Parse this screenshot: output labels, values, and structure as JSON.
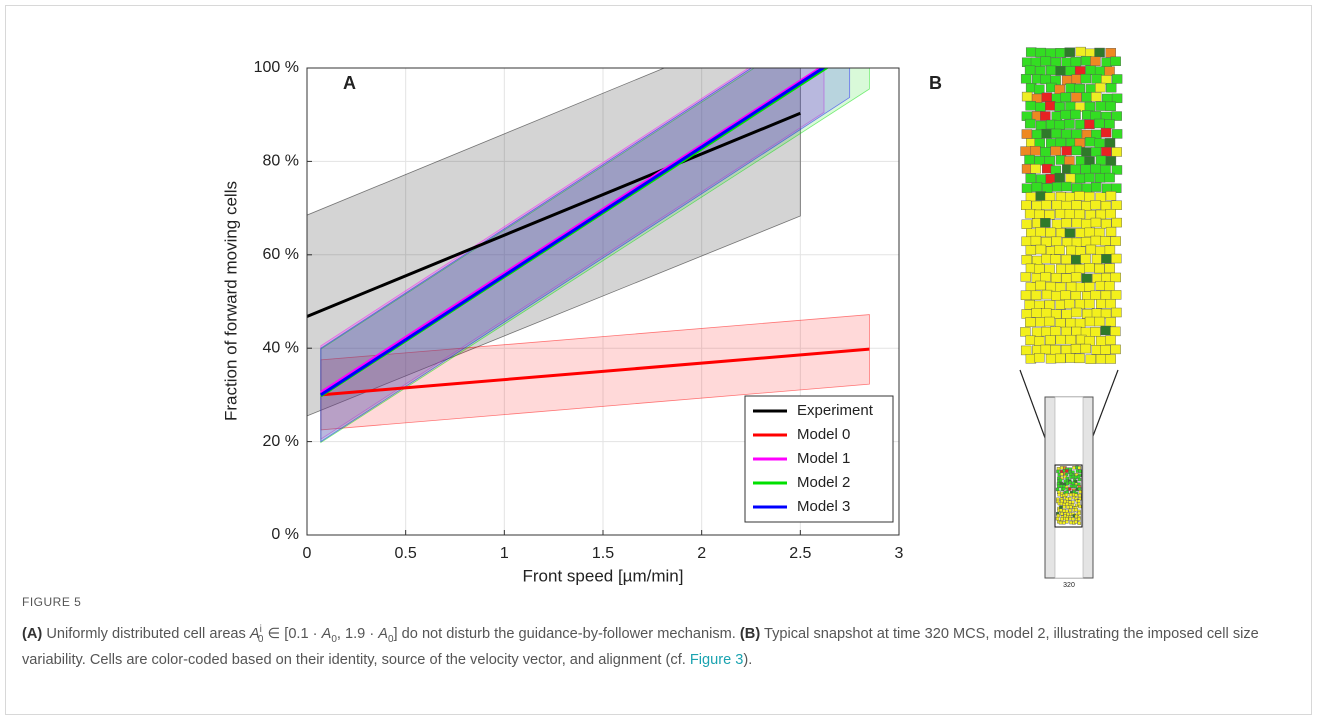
{
  "chart_data": {
    "type": "line",
    "panel_label": "A",
    "xlabel": "Front speed [µm/min]",
    "ylabel": "Fraction of forward moving cells",
    "xlim": [
      0,
      3
    ],
    "ylim": [
      0,
      100
    ],
    "xticks": [
      0,
      0.5,
      1,
      1.5,
      2,
      2.5,
      3
    ],
    "yticks": [
      {
        "value": 0,
        "label": "0 %"
      },
      {
        "value": 20,
        "label": "20 %"
      },
      {
        "value": 40,
        "label": "40 %"
      },
      {
        "value": 60,
        "label": "60 %"
      },
      {
        "value": 80,
        "label": "80 %"
      },
      {
        "value": 100,
        "label": "100 %"
      }
    ],
    "grid": true,
    "legend": "lower right",
    "series": [
      {
        "name": "Experiment",
        "color": "#000000",
        "x": [
          0,
          2.5
        ],
        "values": [
          46.8,
          90.3
        ],
        "lower": [
          25.5,
          68.3
        ],
        "upper": [
          68.5,
          112
        ]
      },
      {
        "name": "Model 0",
        "color": "#ff0000",
        "x": [
          0.07,
          2.85
        ],
        "values": [
          30,
          39.8
        ],
        "lower": [
          22.5,
          32.3
        ],
        "upper": [
          37.5,
          47.2
        ]
      },
      {
        "name": "Model 1",
        "color": "#ff00ff",
        "x": [
          0.07,
          2.62
        ],
        "values": [
          30.5,
          100.5
        ],
        "lower": [
          20.5,
          90.5
        ],
        "upper": [
          40.5,
          110.5
        ]
      },
      {
        "name": "Model 2",
        "color": "#00e000",
        "x": [
          0.07,
          2.85
        ],
        "values": [
          29.8,
          106
        ],
        "lower": [
          19.8,
          95.5
        ],
        "upper": [
          39.8,
          116
        ]
      },
      {
        "name": "Model 3",
        "color": "#0000ff",
        "x": [
          0.07,
          2.75
        ],
        "values": [
          30,
          103.7
        ],
        "lower": [
          20,
          93.7
        ],
        "upper": [
          40,
          113.7
        ]
      }
    ]
  },
  "panel_b": {
    "label": "B",
    "time": "320"
  },
  "caption": {
    "figure": "FIGURE 5",
    "parts": [
      "(A)",
      " Uniformly distributed cell areas ",
      "A",
      "i",
      "0",
      " ∈ [0.1 · ",
      "A",
      "0",
      ", 1.9 · ",
      "A",
      "0",
      "] do not disturb the guidance-by-follower mechanism. ",
      "(B)",
      " Typical snapshot at time 320 MCS, model 2, illustrating the imposed cell size variability. Cells are color-coded based on their identity, source of the velocity vector, and alignment (cf. ",
      "Figure 3",
      ")."
    ]
  }
}
